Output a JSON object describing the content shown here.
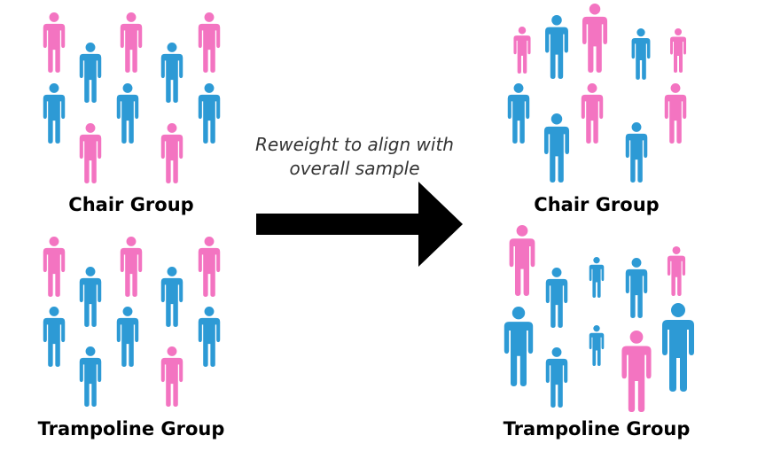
{
  "colors": {
    "pink": "#f374c1",
    "blue": "#2d9ad5",
    "arrow": "#000000"
  },
  "caption": {
    "line1": "Reweight to align with",
    "line2": "overall sample"
  },
  "labels": {
    "left_chair": "Chair Group",
    "left_trampoline": "Trampoline Group",
    "right_chair": "Chair Group",
    "right_trampoline": "Trampoline Group"
  },
  "groups": {
    "left_chair": [
      "pink",
      "blue",
      "pink",
      "blue",
      "pink",
      "blue",
      "blue",
      "blue",
      "pink",
      "pink"
    ],
    "left_trampoline": [
      "pink",
      "blue",
      "pink",
      "blue",
      "pink",
      "blue",
      "blue",
      "blue",
      "blue",
      "pink"
    ],
    "right_chair": [
      "pink",
      "blue",
      "pink",
      "blue",
      "pink",
      "blue",
      "blue",
      "pink",
      "blue",
      "pink"
    ],
    "right_trampoline": [
      "pink",
      "blue",
      "blue",
      "blue",
      "pink",
      "blue",
      "blue",
      "blue",
      "pink",
      "blue"
    ]
  }
}
